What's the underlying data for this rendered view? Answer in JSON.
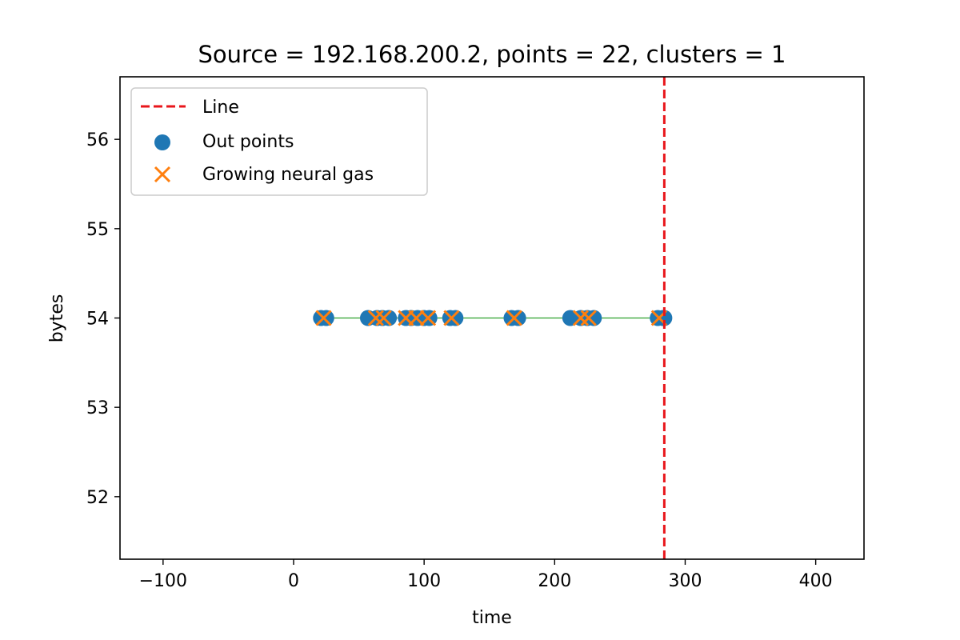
{
  "chart_data": {
    "type": "scatter",
    "title": "Source = 192.168.200.2, points = 22, clusters = 1",
    "xlabel": "time",
    "ylabel": "bytes",
    "xlim": [
      -133,
      437
    ],
    "ylim": [
      51.3,
      56.7
    ],
    "xticks": [
      -100,
      0,
      100,
      200,
      300,
      400
    ],
    "yticks": [
      52,
      53,
      54,
      55,
      56
    ],
    "xtick_labels": [
      "−100",
      "0",
      "100",
      "200",
      "300",
      "400"
    ],
    "ytick_labels": [
      "52",
      "53",
      "54",
      "55",
      "56"
    ],
    "legend_position": "upper-left",
    "series": [
      {
        "name": "Line",
        "kind": "vline",
        "x": 284,
        "color": "#e8161b",
        "style": "dashed"
      },
      {
        "name": "Out points",
        "kind": "scatter",
        "marker": "circle",
        "color": "#1f77b4",
        "x": [
          21,
          25,
          57,
          64,
          68,
          73,
          86,
          90,
          95,
          100,
          104,
          120,
          124,
          167,
          172,
          212,
          220,
          225,
          230,
          279,
          283,
          284
        ],
        "y": [
          54,
          54,
          54,
          54,
          54,
          54,
          54,
          54,
          54,
          54,
          54,
          54,
          54,
          54,
          54,
          54,
          54,
          54,
          54,
          54,
          54,
          54
        ]
      },
      {
        "name": "Growing neural gas",
        "kind": "scatter",
        "marker": "x",
        "color": "#ff7f0e",
        "x": [
          23,
          63,
          69,
          86,
          94,
          103,
          121,
          169,
          220,
          226,
          280
        ],
        "y": [
          54,
          54,
          54,
          54,
          54,
          54,
          54,
          54,
          54,
          54,
          54
        ]
      }
    ],
    "edges": {
      "color": "#2ca02c",
      "x_from": 23,
      "x_to": 283,
      "y": 54
    }
  }
}
